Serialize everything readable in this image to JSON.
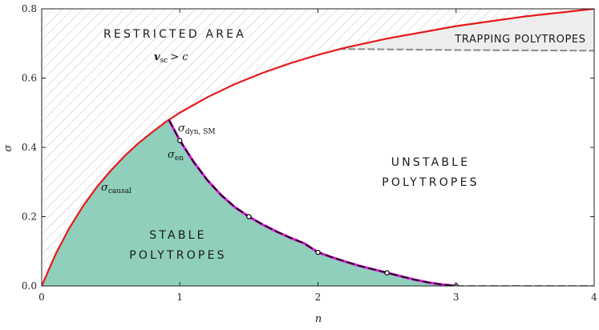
{
  "chart_data": {
    "type": "line",
    "xlabel": "n",
    "ylabel": "σ",
    "xlim": [
      0,
      4
    ],
    "ylim": [
      0,
      0.8
    ],
    "x_ticks": [
      "0",
      "1",
      "2",
      "3",
      "4"
    ],
    "y_ticks": [
      "0.0",
      "0.2",
      "0.4",
      "0.6",
      "0.8"
    ],
    "colors": {
      "causal": "#e8191c",
      "stable_fill": "#8fcfbb",
      "dyn": "#d61fd6",
      "en": "#000000",
      "trapping_fill": "#eeeeee",
      "trapping_line": "#8a8a8a",
      "hatch": "#c4c4c4"
    },
    "series": [
      {
        "name": "σ_causal",
        "x": [
          0,
          0.1,
          0.2,
          0.3,
          0.4,
          0.5,
          0.6,
          0.7,
          0.8,
          0.9,
          1.0,
          1.2,
          1.4,
          1.6,
          1.8,
          2.0,
          2.2,
          2.5,
          3.0,
          3.5,
          4.0
        ],
        "y": [
          0,
          0.091,
          0.167,
          0.231,
          0.286,
          0.333,
          0.375,
          0.412,
          0.444,
          0.474,
          0.5,
          0.545,
          0.583,
          0.615,
          0.643,
          0.667,
          0.688,
          0.714,
          0.75,
          0.778,
          0.8
        ]
      },
      {
        "name": "σ_dyn, SM",
        "x": [
          0.92,
          1.0,
          1.1,
          1.2,
          1.3,
          1.4,
          1.5,
          1.6,
          1.7,
          1.8,
          1.9,
          2.0,
          2.1,
          2.2,
          2.3,
          2.4,
          2.5,
          2.6,
          2.7,
          2.8,
          2.9,
          3.0
        ],
        "y": [
          0.48,
          0.42,
          0.358,
          0.305,
          0.262,
          0.227,
          0.2,
          0.177,
          0.157,
          0.139,
          0.123,
          0.097,
          0.083,
          0.07,
          0.058,
          0.048,
          0.038,
          0.028,
          0.018,
          0.01,
          0.004,
          0.0
        ]
      },
      {
        "name": "σ_en",
        "x": [
          0.92,
          1.0,
          1.1,
          1.2,
          1.3,
          1.4,
          1.5,
          1.6,
          1.7,
          1.8,
          1.9,
          2.0,
          2.1,
          2.2,
          2.3,
          2.4,
          2.5,
          2.6,
          2.7,
          2.8,
          2.9,
          3.0,
          4.0
        ],
        "y": [
          0.48,
          0.42,
          0.358,
          0.305,
          0.262,
          0.227,
          0.2,
          0.177,
          0.157,
          0.139,
          0.123,
          0.097,
          0.083,
          0.07,
          0.058,
          0.048,
          0.038,
          0.028,
          0.018,
          0.01,
          0.004,
          0.0,
          0.0
        ]
      },
      {
        "name": "trapping boundary",
        "x": [
          2.15,
          2.5,
          3.0,
          3.5,
          4.0
        ],
        "y": [
          0.684,
          0.683,
          0.681,
          0.68,
          0.679
        ]
      }
    ],
    "markers": {
      "x": [
        1.0,
        1.5,
        2.0,
        2.5,
        3.0
      ],
      "y": [
        0.42,
        0.2,
        0.097,
        0.038,
        0.0
      ]
    },
    "annotations": {
      "restricted_title": "RESTRICTED AREA",
      "restricted_sub": "v_sc > c",
      "trapping": "TRAPPING POLYTROPES",
      "unstable_1": "UNSTABLE",
      "unstable_2": "POLYTROPES",
      "stable_1": "STABLE",
      "stable_2": "POLYTROPES",
      "sigma_causal_main": "σ",
      "sigma_causal_sub": "causal",
      "sigma_dyn_main": "σ",
      "sigma_dyn_sub": "dyn, SM",
      "sigma_en_main": "σ",
      "sigma_en_sub": "en",
      "restricted_v": "v",
      "restricted_v_sub": "sc",
      "restricted_gt_c": "> c"
    }
  }
}
